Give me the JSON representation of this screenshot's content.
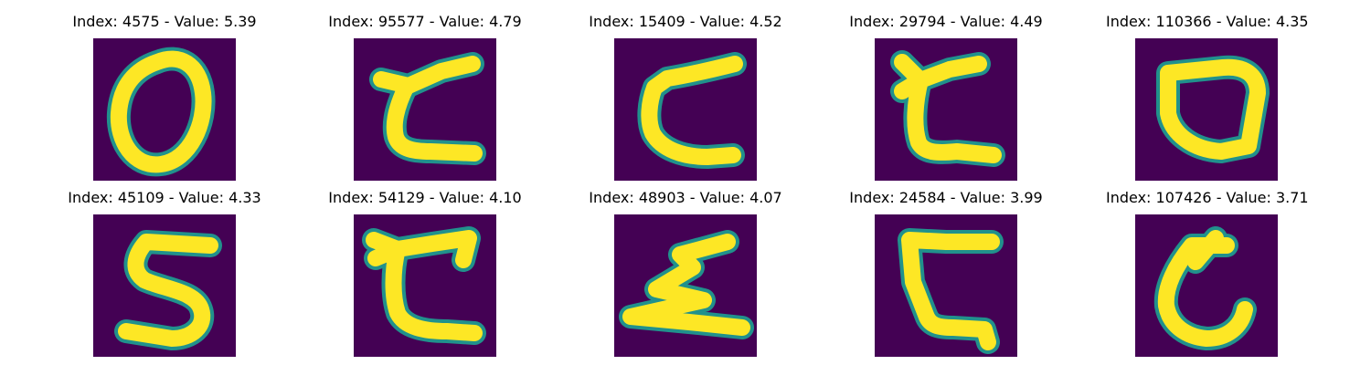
{
  "colors": {
    "background": "#440154",
    "stroke_core": "#fde725",
    "stroke_edge": "#21918c"
  },
  "panels": [
    {
      "title": "Index: 4575 - Value: 5.39",
      "glyph": "digit-0"
    },
    {
      "title": "Index: 95577 - Value: 4.79",
      "glyph": "letter-z-open"
    },
    {
      "title": "Index: 15409 - Value: 4.52",
      "glyph": "letter-c-wide"
    },
    {
      "title": "Index: 29794 - Value: 4.49",
      "glyph": "letter-c-notched"
    },
    {
      "title": "Index: 110366 - Value: 4.35",
      "glyph": "digit-0-square"
    },
    {
      "title": "Index: 45109 - Value: 4.33",
      "glyph": "digit-5"
    },
    {
      "title": "Index: 54129 - Value: 4.10",
      "glyph": "letter-c-notched"
    },
    {
      "title": "Index: 48903 - Value: 4.07",
      "glyph": "letter-sigma"
    },
    {
      "title": "Index: 24584 - Value: 3.99",
      "glyph": "letter-c-angular"
    },
    {
      "title": "Index: 107426 - Value: 3.71",
      "glyph": "digit-6"
    }
  ]
}
